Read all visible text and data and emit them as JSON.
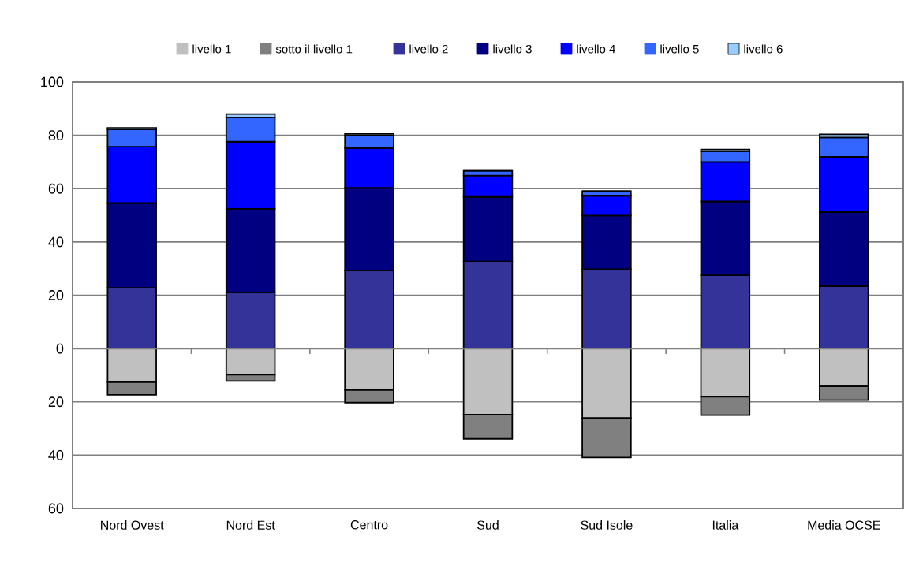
{
  "chart_data": {
    "type": "bar",
    "stacked": true,
    "categories": [
      "Nord Ovest",
      "Nord Est",
      "Centro",
      "Sud",
      "Sud Isole",
      "Italia",
      "Media OCSE"
    ],
    "series": [
      {
        "name": "livello 1",
        "color": "#c0c0c0",
        "values": [
          -12.6,
          -9.8,
          -15.6,
          -24.8,
          -26.1,
          -18.1,
          -14.2
        ]
      },
      {
        "name": "sotto il livello 1",
        "color": "#808080",
        "values": [
          -4.8,
          -2.4,
          -4.7,
          -9.1,
          -14.8,
          -6.9,
          -5.2
        ]
      },
      {
        "name": "livello 2",
        "color": "#333399",
        "values": [
          22.8,
          21.1,
          29.3,
          32.7,
          29.8,
          27.5,
          23.4
        ]
      },
      {
        "name": "livello 3",
        "color": "#000080",
        "values": [
          31.8,
          31.3,
          31.0,
          24.2,
          20.1,
          27.7,
          27.8
        ]
      },
      {
        "name": "livello 4",
        "color": "#0000ff",
        "values": [
          21.1,
          25.2,
          14.9,
          8.0,
          7.4,
          14.8,
          20.7
        ]
      },
      {
        "name": "livello 5",
        "color": "#3366ff",
        "values": [
          6.5,
          9.1,
          4.7,
          1.8,
          1.8,
          4.0,
          7.3
        ]
      },
      {
        "name": "livello 6",
        "color": "#99ccff",
        "values": [
          0.6,
          1.3,
          0.6,
          0,
          0,
          0.7,
          1.2
        ]
      }
    ],
    "ylim": [
      -60,
      100
    ],
    "yticks": [
      {
        "value": -60,
        "label": "60"
      },
      {
        "value": -40,
        "label": "40"
      },
      {
        "value": -20,
        "label": "20"
      },
      0,
      20,
      40,
      60,
      80,
      100
    ],
    "grid": "y",
    "legend": "top"
  }
}
